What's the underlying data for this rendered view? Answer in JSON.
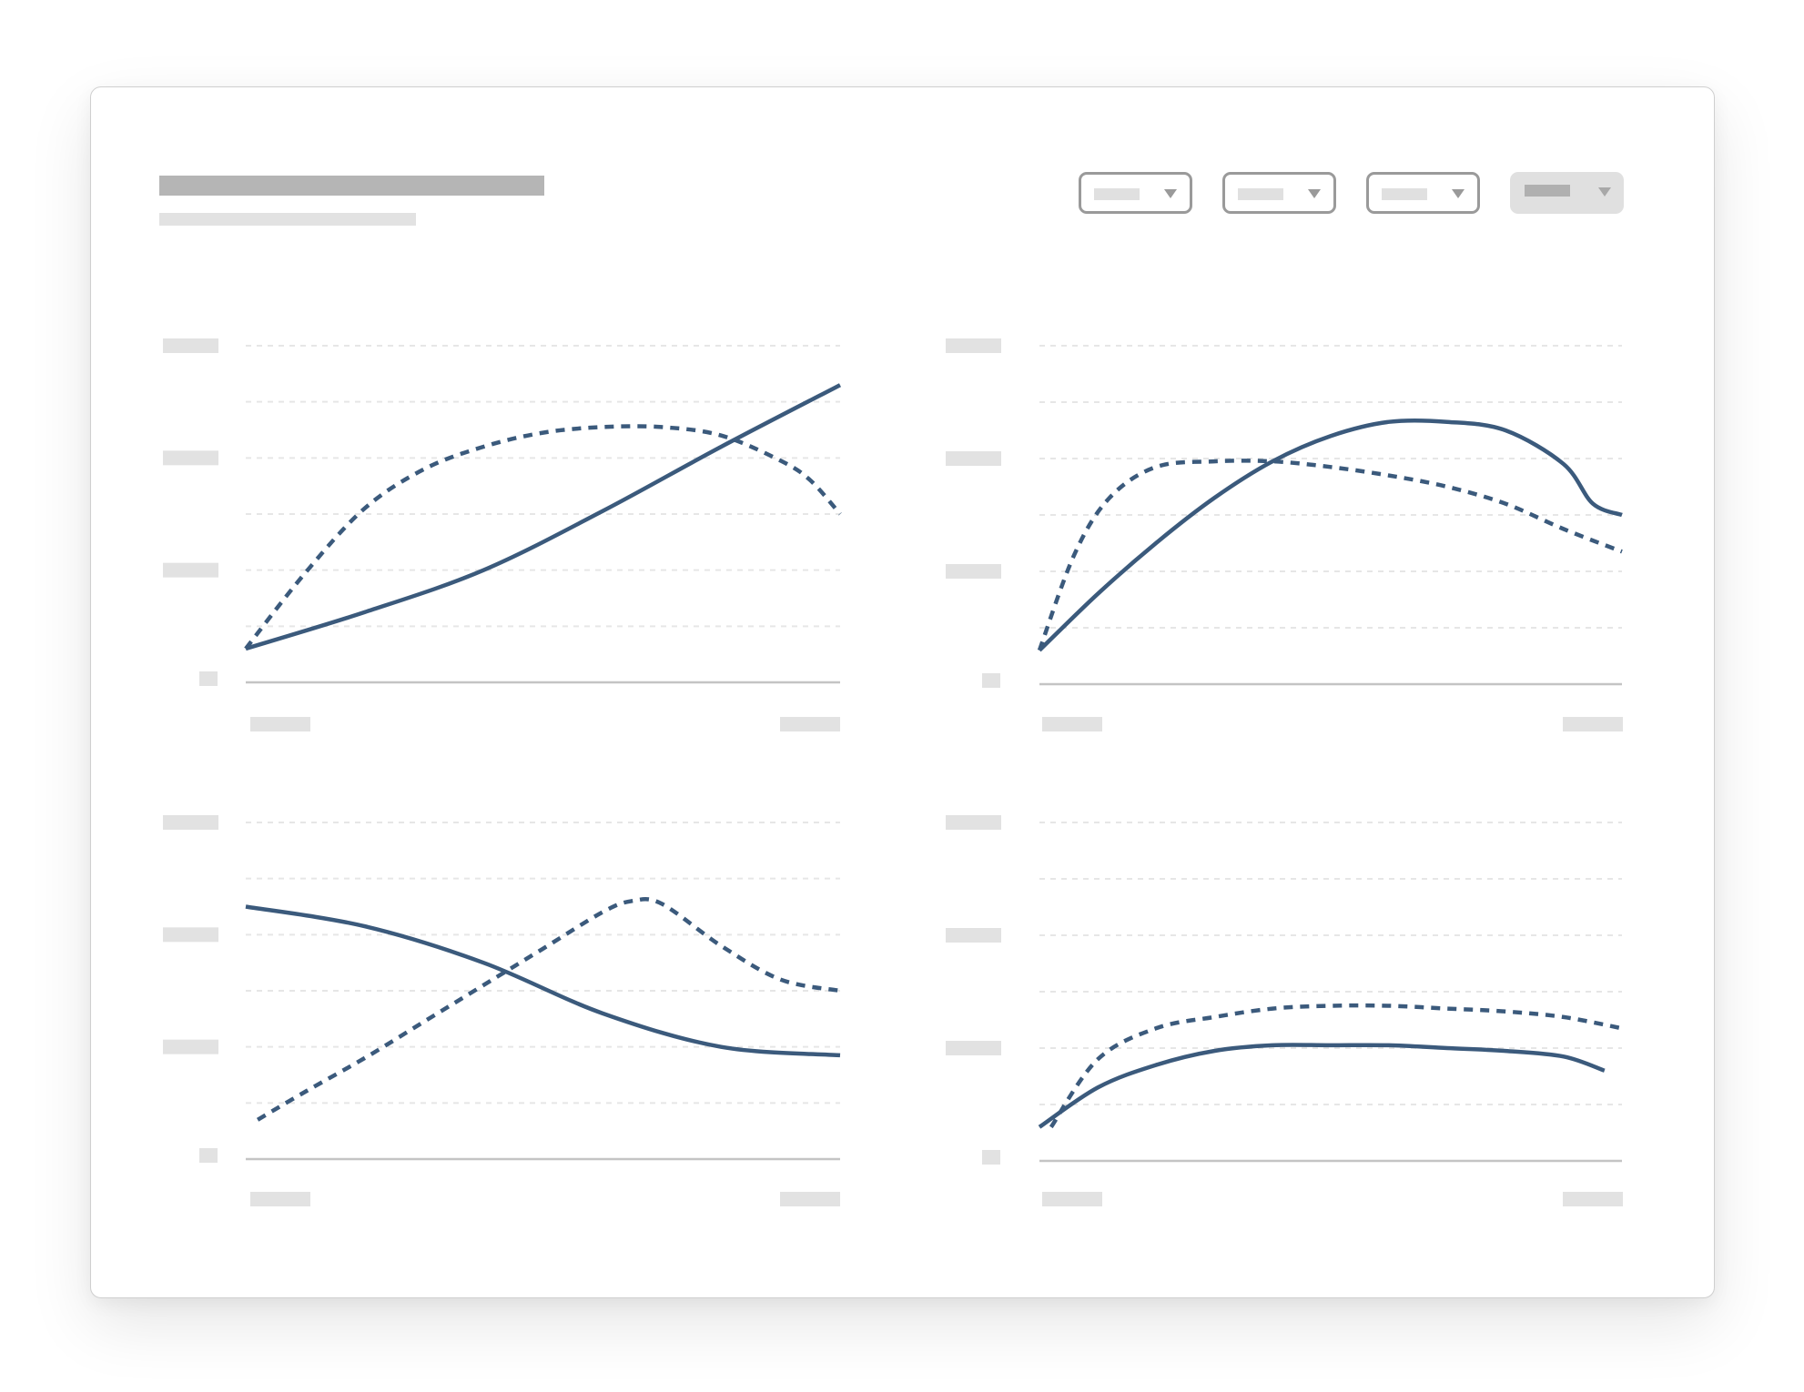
{
  "colors": {
    "series": "#3b5a7c",
    "grid": "#e6e6e6",
    "axis": "#c4c4c4",
    "placeholder": "#e2e2e2"
  },
  "header": {
    "title_placeholder": "",
    "subtitle_placeholder": ""
  },
  "filters": [
    {
      "id": "filter-1",
      "icon": "chevron-down-icon",
      "active": false
    },
    {
      "id": "filter-2",
      "icon": "chevron-down-icon",
      "active": false
    },
    {
      "id": "filter-3",
      "icon": "chevron-down-icon",
      "active": false
    },
    {
      "id": "filter-4",
      "icon": "chevron-down-icon",
      "active": true
    }
  ],
  "chart_data": [
    {
      "type": "line",
      "position": "top-left",
      "grid": true,
      "xlim": [
        0,
        10
      ],
      "ylim": [
        0,
        6
      ],
      "series": [
        {
          "style": "solid",
          "x": [
            0,
            2,
            4,
            6,
            8,
            10
          ],
          "y": [
            0.6,
            1.25,
            2.0,
            3.05,
            4.2,
            5.3
          ]
        },
        {
          "style": "dashed",
          "x": [
            0,
            1,
            2,
            3,
            4,
            5,
            6,
            7,
            8,
            9,
            9.5,
            10
          ],
          "y": [
            0.6,
            1.95,
            3.1,
            3.8,
            4.2,
            4.45,
            4.55,
            4.55,
            4.4,
            3.95,
            3.6,
            3.0
          ]
        }
      ]
    },
    {
      "type": "line",
      "position": "top-right",
      "grid": true,
      "xlim": [
        0,
        10
      ],
      "ylim": [
        0,
        6
      ],
      "series": [
        {
          "style": "solid",
          "x": [
            0,
            1,
            2,
            3,
            4,
            5,
            6,
            7,
            8,
            9,
            9.5,
            10
          ],
          "y": [
            0.6,
            1.6,
            2.5,
            3.3,
            3.95,
            4.4,
            4.65,
            4.65,
            4.5,
            3.9,
            3.2,
            3.0
          ]
        },
        {
          "style": "dashed",
          "x": [
            0,
            0.6,
            1.2,
            2,
            3,
            4,
            5,
            6,
            7,
            8,
            9,
            10
          ],
          "y": [
            0.6,
            2.3,
            3.3,
            3.85,
            3.95,
            3.95,
            3.85,
            3.7,
            3.5,
            3.2,
            2.75,
            2.35
          ]
        }
      ]
    },
    {
      "type": "line",
      "position": "bottom-left",
      "grid": true,
      "xlim": [
        0,
        10
      ],
      "ylim": [
        0,
        6
      ],
      "series": [
        {
          "style": "solid",
          "x": [
            0,
            2,
            4,
            6,
            8,
            10
          ],
          "y": [
            4.5,
            4.15,
            3.5,
            2.6,
            2.0,
            1.85
          ]
        },
        {
          "style": "dashed",
          "x": [
            0.2,
            1,
            2,
            3,
            4,
            5,
            6,
            6.5,
            7,
            8,
            9,
            10
          ],
          "y": [
            0.7,
            1.2,
            1.8,
            2.45,
            3.1,
            3.75,
            4.4,
            4.6,
            4.55,
            3.8,
            3.2,
            3.0
          ]
        }
      ]
    },
    {
      "type": "line",
      "position": "bottom-right",
      "grid": true,
      "xlim": [
        0,
        10
      ],
      "ylim": [
        0,
        6
      ],
      "series": [
        {
          "style": "solid",
          "x": [
            0,
            1,
            2,
            3,
            4,
            5,
            6,
            7,
            8,
            9,
            9.7
          ],
          "y": [
            0.6,
            1.3,
            1.7,
            1.95,
            2.05,
            2.05,
            2.05,
            2.0,
            1.95,
            1.85,
            1.6
          ]
        },
        {
          "style": "dashed",
          "x": [
            0.2,
            1,
            2,
            3,
            4,
            5,
            6,
            7,
            8,
            9,
            10
          ],
          "y": [
            0.6,
            1.8,
            2.35,
            2.55,
            2.7,
            2.75,
            2.75,
            2.7,
            2.65,
            2.55,
            2.35
          ]
        }
      ]
    }
  ]
}
